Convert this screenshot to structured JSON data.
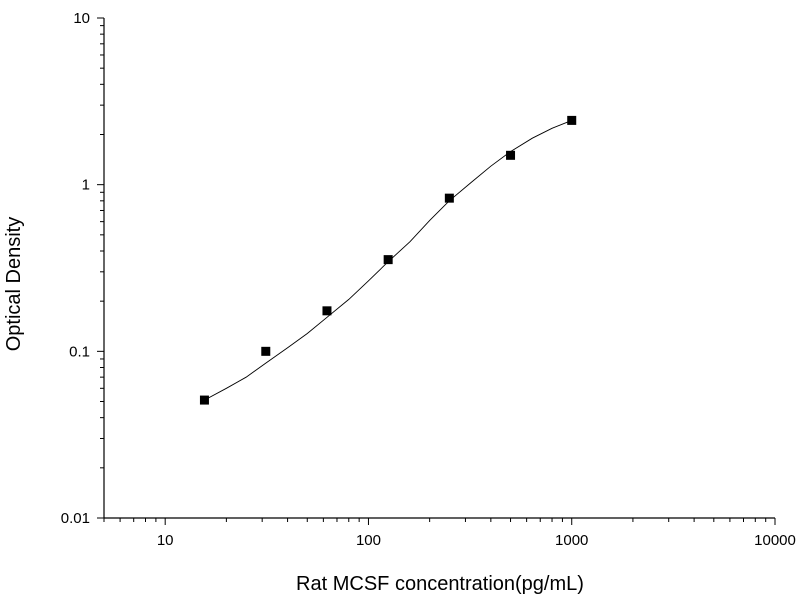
{
  "chart_data": {
    "type": "scatter",
    "title": "",
    "xlabel": "Rat MCSF concentration(pg/mL)",
    "ylabel": "Optical Density",
    "x_scale": "log",
    "y_scale": "log",
    "xlim": [
      5,
      10000
    ],
    "ylim": [
      0.01,
      10
    ],
    "x_tick_labels": [
      "10",
      "100",
      "1000",
      "10000"
    ],
    "y_tick_labels": [
      "0.01",
      "0.1",
      "1",
      "10"
    ],
    "grid": false,
    "legend": "none",
    "series": [
      {
        "x": [
          15.6,
          31.25,
          62.5,
          125,
          250,
          500,
          1000
        ],
        "y": [
          0.051,
          0.1,
          0.175,
          0.355,
          0.83,
          1.5,
          2.43
        ],
        "marker": "square",
        "color": "#000000"
      }
    ],
    "fit_curve": {
      "x": [
        15.6,
        20,
        25,
        31.25,
        40,
        50,
        62.5,
        80,
        100,
        125,
        160,
        200,
        250,
        320,
        400,
        500,
        640,
        800,
        1000
      ],
      "y": [
        0.051,
        0.06,
        0.07,
        0.085,
        0.105,
        0.128,
        0.16,
        0.205,
        0.265,
        0.345,
        0.455,
        0.61,
        0.8,
        1.03,
        1.29,
        1.58,
        1.9,
        2.18,
        2.43
      ],
      "color": "#000000"
    }
  }
}
